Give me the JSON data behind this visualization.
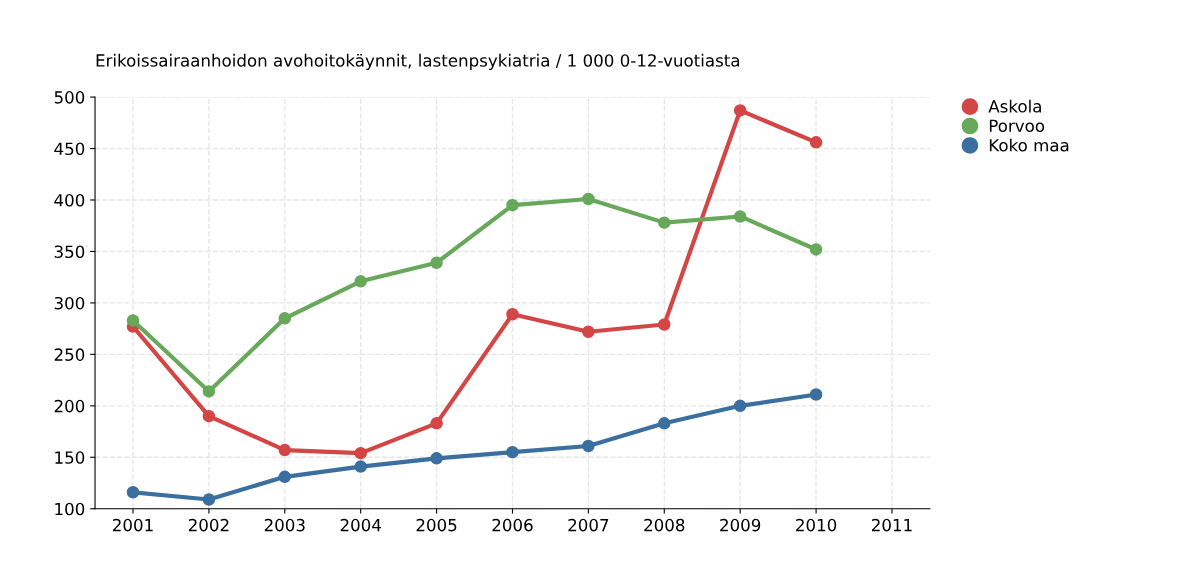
{
  "chart_data": {
    "type": "line",
    "title": "Erikoissairaanhoidon avohoitokäynnit, lastenpsykiatria / 1 000 0-12-vuotiasta",
    "x": [
      2001,
      2002,
      2003,
      2004,
      2005,
      2006,
      2007,
      2008,
      2009,
      2010
    ],
    "series": [
      {
        "name": "Askola",
        "color": "#d44545",
        "values": [
          277,
          190,
          157,
          154,
          183,
          289,
          272,
          279,
          487,
          456
        ]
      },
      {
        "name": "Porvoo",
        "color": "#68a85a",
        "values": [
          283,
          214,
          285,
          321,
          339,
          395,
          401,
          378,
          384,
          352
        ]
      },
      {
        "name": "Koko maa",
        "color": "#3a6fa0",
        "values": [
          116,
          109,
          131,
          141,
          149,
          155,
          161,
          183,
          200,
          211
        ]
      }
    ],
    "xlim": [
      2000.5,
      2011.5
    ],
    "xticks": [
      2001,
      2002,
      2003,
      2004,
      2005,
      2006,
      2007,
      2008,
      2009,
      2010,
      2011
    ],
    "ylim": [
      100,
      500
    ],
    "yticks": [
      100,
      150,
      200,
      250,
      300,
      350,
      400,
      450,
      500
    ],
    "grid": true,
    "legend": "top right",
    "marker": "circle",
    "line_style": "solid"
  }
}
